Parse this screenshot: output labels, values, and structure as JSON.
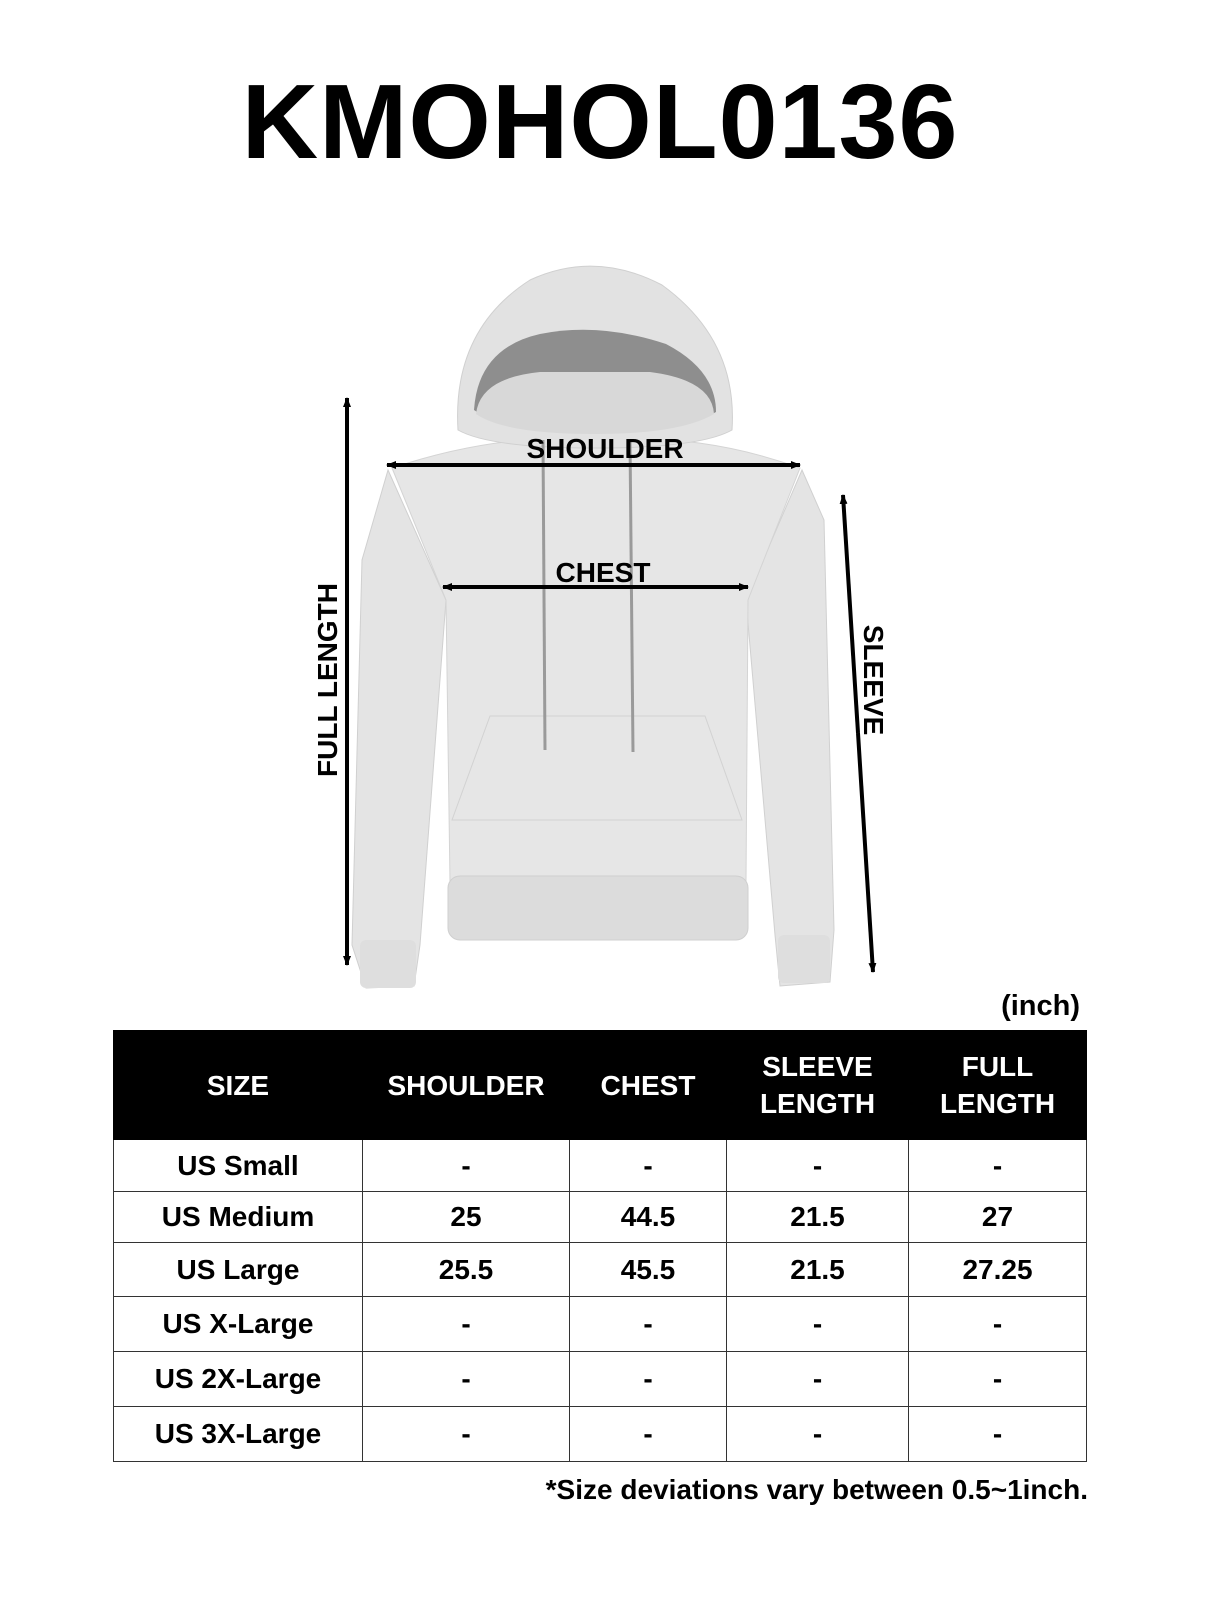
{
  "title": "KMOHOL0136",
  "diagram": {
    "labels": {
      "shoulder": "SHOULDER",
      "chest": "CHEST",
      "full_length": "FULL LENGTH",
      "sleeve": "SLEEVE"
    },
    "garment_color": "#e6e6e6"
  },
  "unit": "(inch)",
  "table": {
    "headers": [
      [
        "SIZE"
      ],
      [
        "SHOULDER"
      ],
      [
        "CHEST"
      ],
      [
        "SLEEVE",
        "LENGTH"
      ],
      [
        "FULL",
        "LENGTH"
      ]
    ],
    "rows": [
      [
        "US Small",
        "-",
        "-",
        "-",
        "-"
      ],
      [
        "US Medium",
        "25",
        "44.5",
        "21.5",
        "27"
      ],
      [
        "US Large",
        "25.5",
        "45.5",
        "21.5",
        "27.25"
      ],
      [
        "US X-Large",
        "-",
        "-",
        "-",
        "-"
      ],
      [
        "US 2X-Large",
        "-",
        "-",
        "-",
        "-"
      ],
      [
        "US 3X-Large",
        "-",
        "-",
        "-",
        "-"
      ]
    ]
  },
  "note": "*Size deviations vary between 0.5~1inch."
}
